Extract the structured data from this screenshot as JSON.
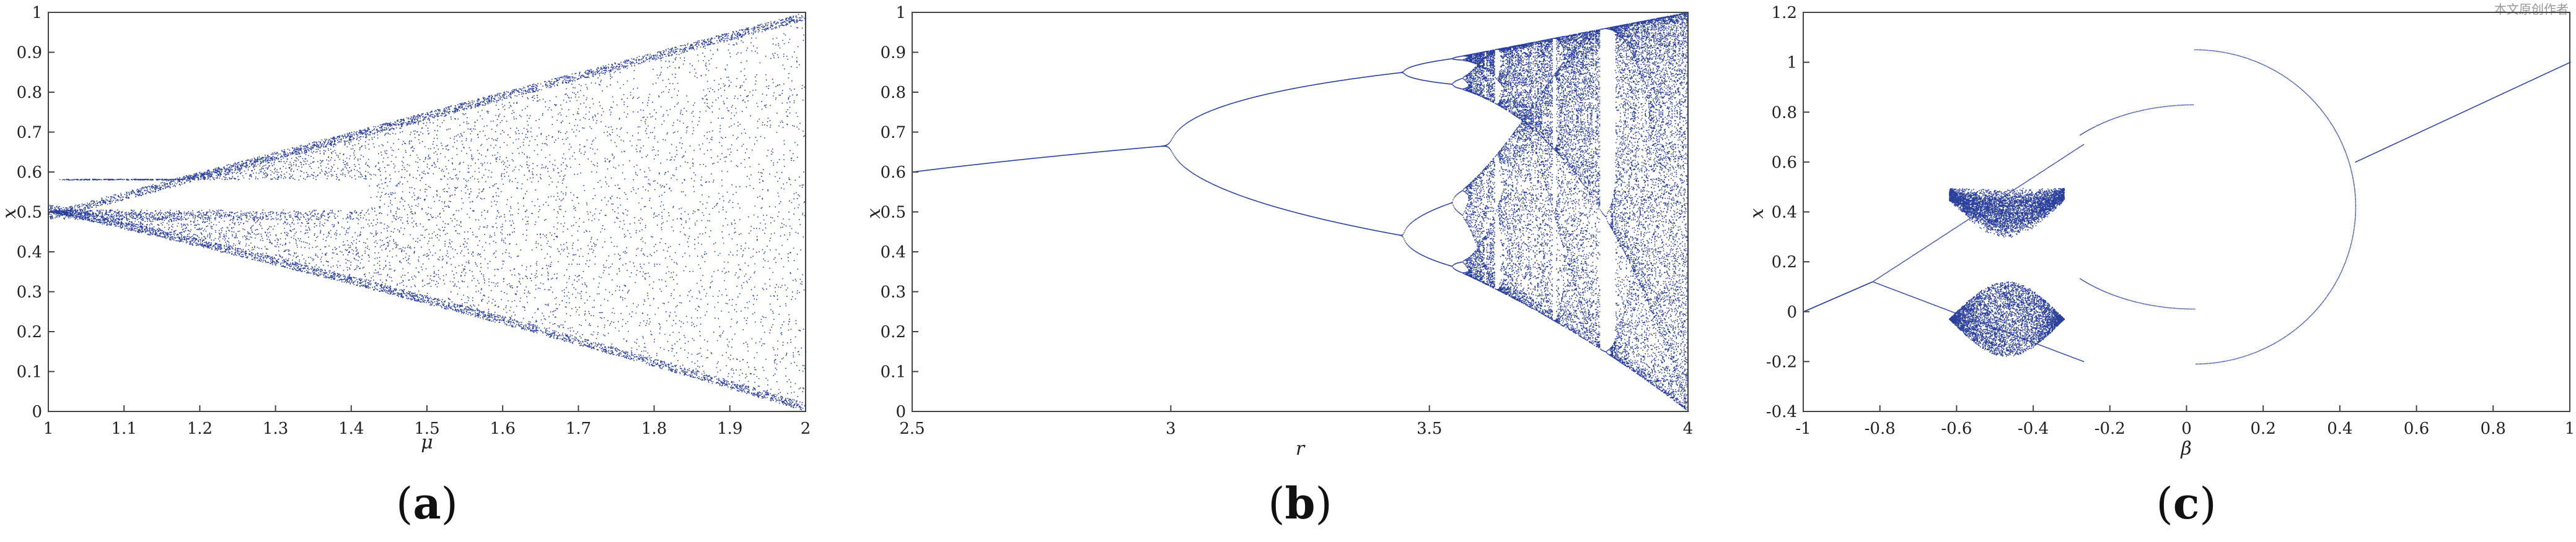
{
  "watermark": "本文原创作者",
  "chart_data": [
    {
      "type": "scatter",
      "panel_label": "a",
      "title": "",
      "xlabel": "μ",
      "ylabel": "x",
      "xlim": [
        1,
        2
      ],
      "ylim": [
        0,
        1
      ],
      "x_ticks": [
        "1",
        "1.1",
        "1.2",
        "1.3",
        "1.4",
        "1.5",
        "1.6",
        "1.7",
        "1.8",
        "1.9",
        "2"
      ],
      "y_ticks": [
        "0",
        "0.1",
        "0.2",
        "0.3",
        "0.4",
        "0.5",
        "0.6",
        "0.7",
        "0.8",
        "0.9",
        "1"
      ],
      "grid": false,
      "color": "#2a3f9a",
      "description_points": {
        "start": [
          1.0,
          0.5
        ],
        "upper_envelope": [
          [
            1.0,
            0.5
          ],
          [
            1.2,
            0.6
          ],
          [
            1.4,
            0.7
          ],
          [
            1.6,
            0.8
          ],
          [
            1.8,
            0.9
          ],
          [
            2.0,
            1.0
          ]
        ],
        "lower_envelope": [
          [
            1.0,
            0.5
          ],
          [
            1.2,
            0.42
          ],
          [
            1.4,
            0.34
          ],
          [
            1.6,
            0.22
          ],
          [
            1.8,
            0.11
          ],
          [
            2.0,
            0.0
          ]
        ],
        "gap_end_mu": 1.42,
        "gap_y": 0.58
      }
    },
    {
      "type": "scatter",
      "panel_label": "b",
      "title": "",
      "xlabel": "r",
      "ylabel": "x",
      "xlim": [
        2.5,
        4
      ],
      "ylim": [
        0,
        1
      ],
      "x_ticks": [
        "2.5",
        "3",
        "3.5",
        "4"
      ],
      "y_ticks": [
        "0",
        "0.1",
        "0.2",
        "0.3",
        "0.4",
        "0.5",
        "0.6",
        "0.7",
        "0.8",
        "0.9",
        "1"
      ],
      "grid": false,
      "color": "#2a3f9a",
      "bifurcation_points": [
        3.0,
        3.449,
        3.544,
        3.5699
      ],
      "fixed_point_at": [
        [
          2.5,
          0.6
        ],
        [
          3.0,
          0.667
        ]
      ]
    },
    {
      "type": "scatter",
      "panel_label": "c",
      "title": "",
      "xlabel": "β",
      "ylabel": "x",
      "xlim": [
        -1,
        1
      ],
      "ylim": [
        -0.4,
        1.2
      ],
      "x_ticks": [
        "-1",
        "-0.8",
        "-0.6",
        "-0.4",
        "-0.2",
        "0",
        "0.2",
        "0.4",
        "0.6",
        "0.8",
        "1"
      ],
      "y_ticks": [
        "-0.4",
        "-0.2",
        "0",
        "0.2",
        "0.4",
        "0.6",
        "0.8",
        "1",
        "1.2"
      ],
      "grid": false,
      "color": "#2a3f9a",
      "left_branch": [
        [
          -1.0,
          0.0
        ],
        [
          -0.82,
          0.12
        ]
      ],
      "right_branch": [
        [
          0.44,
          0.6
        ],
        [
          1.0,
          1.0
        ]
      ],
      "big_loop_peak": [
        0.1,
        1.05
      ],
      "big_loop_trough": [
        -0.3,
        -0.2
      ]
    }
  ]
}
